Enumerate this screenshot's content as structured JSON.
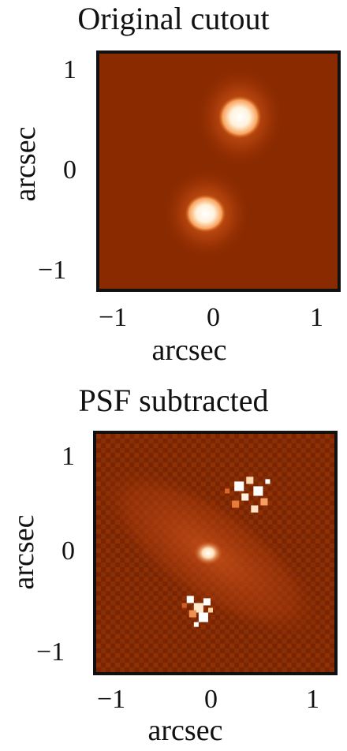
{
  "panels": [
    {
      "title": "Original cutout",
      "xlabel": "arcsec",
      "ylabel": "arcsec",
      "xticks": [
        "−1",
        "0",
        "1"
      ],
      "yticks": [
        "1",
        "0",
        "−1"
      ]
    },
    {
      "title": "PSF subtracted",
      "xlabel": "arcsec",
      "ylabel": "arcsec",
      "xticks": [
        "−1",
        "0",
        "1"
      ],
      "yticks": [
        "1",
        "0",
        "−1"
      ]
    }
  ],
  "colors": {
    "background": "#8a2a00",
    "mid": "#c84a10",
    "bright": "#ffd7a0",
    "peak": "#ffffff"
  },
  "chart_data": [
    {
      "type": "heatmap",
      "title": "Original cutout",
      "xlabel": "arcsec",
      "ylabel": "arcsec",
      "xlim": [
        -1.2,
        1.2
      ],
      "ylim": [
        -1.2,
        1.2
      ],
      "sources": [
        {
          "x": 0.22,
          "y": 0.55
        },
        {
          "x": -0.12,
          "y": -0.45
        }
      ]
    },
    {
      "type": "heatmap",
      "title": "PSF subtracted",
      "xlabel": "arcsec",
      "ylabel": "arcsec",
      "xlim": [
        -1.2,
        1.2
      ],
      "ylim": [
        -1.2,
        1.2
      ],
      "sources": [
        {
          "x": -0.05,
          "y": 0.0
        },
        {
          "x": 0.25,
          "y": 0.6
        },
        {
          "x": -0.2,
          "y": -0.48
        }
      ]
    }
  ]
}
